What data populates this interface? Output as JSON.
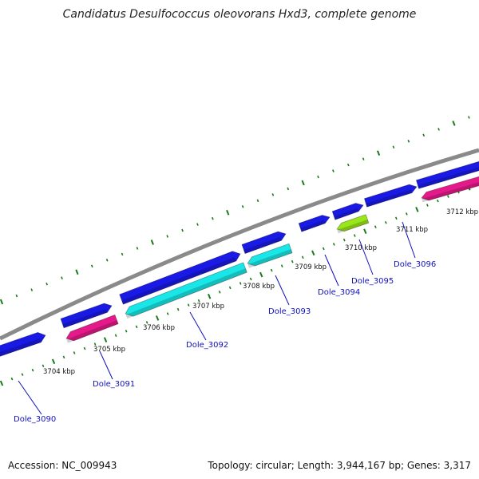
{
  "title": "Candidatus Desulfococcus oleovorans Hxd3, complete genome",
  "footer": {
    "accession": "Accession: NC_009943",
    "summary": "Topology: circular; Length: 3,944,167 bp; Genes: 3,317"
  },
  "colors": {
    "backbone": "#8a8a8a",
    "tick": "#1a7a1a",
    "label": "#1010c0",
    "forward_gene": "#1a1ae6",
    "reverse_gene_magenta": "#e6198a",
    "reverse_gene_cyan": "#19e6e6",
    "reverse_gene_green": "#99e619"
  },
  "scale": {
    "labels": [
      {
        "text": "3704 kbp"
      },
      {
        "text": "3705 kbp"
      },
      {
        "text": "3706 kbp"
      },
      {
        "text": "3707 kbp"
      },
      {
        "text": "3708 kbp"
      },
      {
        "text": "3709 kbp"
      },
      {
        "text": "3710 kbp"
      },
      {
        "text": "3711 kbp"
      },
      {
        "text": "3712 kbp"
      }
    ]
  },
  "gene_labels": [
    {
      "text": "Dole_3090"
    },
    {
      "text": "Dole_3091"
    },
    {
      "text": "Dole_3092"
    },
    {
      "text": "Dole_3093"
    },
    {
      "text": "Dole_3094"
    },
    {
      "text": "Dole_3095"
    },
    {
      "text": "Dole_3096"
    }
  ]
}
